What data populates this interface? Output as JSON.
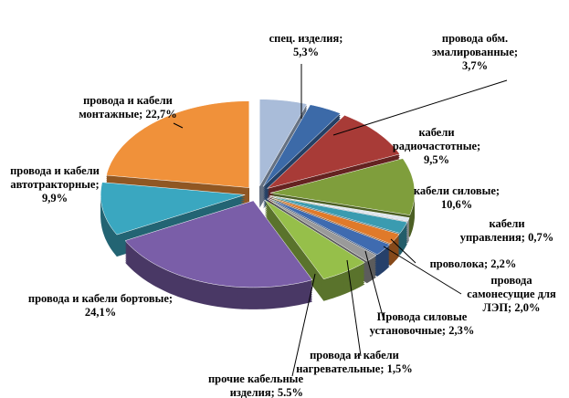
{
  "chart_data": {
    "type": "pie3d",
    "categories": [
      "спец. изделия;",
      "провода обм. эмалированные;",
      "кабели радиочастотные;",
      "кабели силовые;",
      "кабели управления;",
      "проволока;",
      "провода самонесущие для ЛЭП;",
      "Провода силовые установочные;",
      "провода и кабели нагревательные;",
      "прочие кабельные изделия;",
      "провода и кабели бортовые;",
      "провода и кабели автотракторные;",
      "провода и кабели монтажные;"
    ],
    "values": [
      5.3,
      3.7,
      9.5,
      10.6,
      0.7,
      2.2,
      2.0,
      2.3,
      1.5,
      5.5,
      24.1,
      9.9,
      22.7
    ],
    "value_labels": [
      "5,3%",
      "3,7%",
      "9,5%",
      "10,6%",
      "0,7%",
      "2,2%",
      "2,0%",
      "2,3%",
      "1,5%",
      "5.5%",
      "24,1%",
      "9,9%",
      "22,7%"
    ],
    "colors": [
      "#a9bcd9",
      "#3c6aa8",
      "#a83b37",
      "#7f9e3c",
      "#dfe6ee",
      "#3a9bb0",
      "#e07a2a",
      "#3f6bb0",
      "#9a9a9a",
      "#96bf4a",
      "#7a5ea8",
      "#3aa7c0",
      "#f0913a"
    ]
  }
}
